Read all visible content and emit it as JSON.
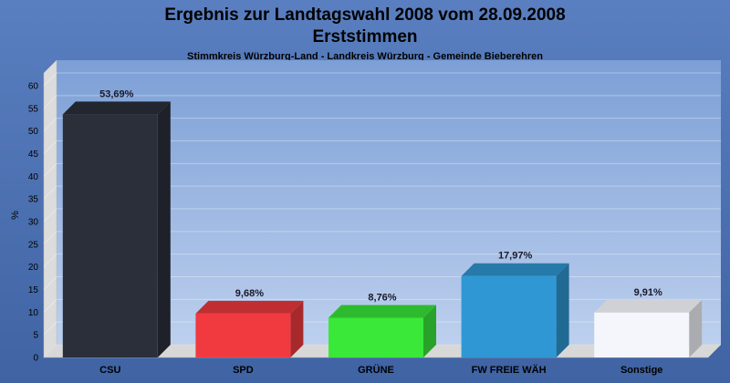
{
  "chart_data": {
    "type": "bar",
    "title": "Ergebnis zur Landtagswahl 2008 vom 28.09.2008",
    "title_line2": "Erststimmen",
    "subtitle": "Stimmkreis Würzburg-Land - Landkreis Würzburg - Gemeinde Bieberehren",
    "ylabel": "%",
    "xlabel": "",
    "ylim": [
      0,
      60
    ],
    "yticks": [
      0,
      5,
      10,
      15,
      20,
      25,
      30,
      35,
      40,
      45,
      50,
      55,
      60
    ],
    "grid": true,
    "categories": [
      "CSU",
      "SPD",
      "GRÜNE",
      "FW FREIE WÄH",
      "Sonstige"
    ],
    "values": [
      53.69,
      9.68,
      8.76,
      17.97,
      9.91
    ],
    "value_labels": [
      "53,69%",
      "9,68%",
      "8,76%",
      "17,97%",
      "9,91%"
    ],
    "colors": [
      "#2b2f3a",
      "#f03a3f",
      "#3ae83a",
      "#2f98d4",
      "#f4f6fb"
    ]
  }
}
